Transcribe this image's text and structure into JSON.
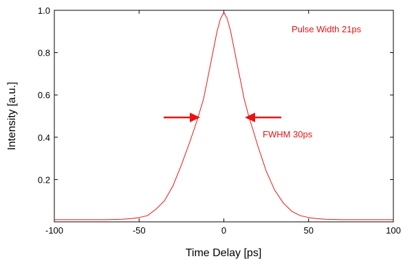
{
  "chart_data": {
    "type": "line",
    "title": "",
    "xlabel": "Time Delay [ps]",
    "ylabel": "Intensity [a.u.]",
    "xlim": [
      -100,
      100
    ],
    "ylim": [
      0,
      1.0
    ],
    "xticks": [
      -100,
      -50,
      0,
      50,
      100
    ],
    "yticks": [
      0.2,
      0.4,
      0.6,
      0.8,
      1.0
    ],
    "xtick_labels": [
      "-100",
      "-50",
      "0",
      "50",
      "100"
    ],
    "ytick_labels": [
      "0.2",
      "0.4",
      "0.6",
      "0.8",
      "1.0"
    ],
    "grid": false,
    "series": [
      {
        "color": "#ee1111",
        "x": [
          -100,
          -90,
          -80,
          -70,
          -60,
          -55,
          -50,
          -45,
          -40,
          -35,
          -30,
          -25,
          -20,
          -17,
          -15,
          -12,
          -10,
          -8,
          -6,
          -4,
          -2,
          0,
          2,
          4,
          6,
          8,
          10,
          12,
          15,
          17,
          20,
          25,
          30,
          35,
          40,
          45,
          50,
          55,
          60,
          70,
          80,
          90,
          100
        ],
        "y": [
          0.01,
          0.01,
          0.01,
          0.01,
          0.012,
          0.015,
          0.02,
          0.03,
          0.06,
          0.1,
          0.17,
          0.27,
          0.38,
          0.45,
          0.5,
          0.58,
          0.66,
          0.74,
          0.82,
          0.9,
          0.96,
          0.99,
          0.96,
          0.9,
          0.82,
          0.74,
          0.66,
          0.58,
          0.49,
          0.44,
          0.36,
          0.24,
          0.15,
          0.09,
          0.05,
          0.03,
          0.02,
          0.015,
          0.012,
          0.01,
          0.01,
          0.01,
          0.01
        ]
      }
    ],
    "annotations": [
      {
        "text": "Pulse Width 21ps",
        "color": "#ee1111"
      },
      {
        "text": "FWHM 30ps",
        "color": "#ee1111"
      }
    ]
  }
}
